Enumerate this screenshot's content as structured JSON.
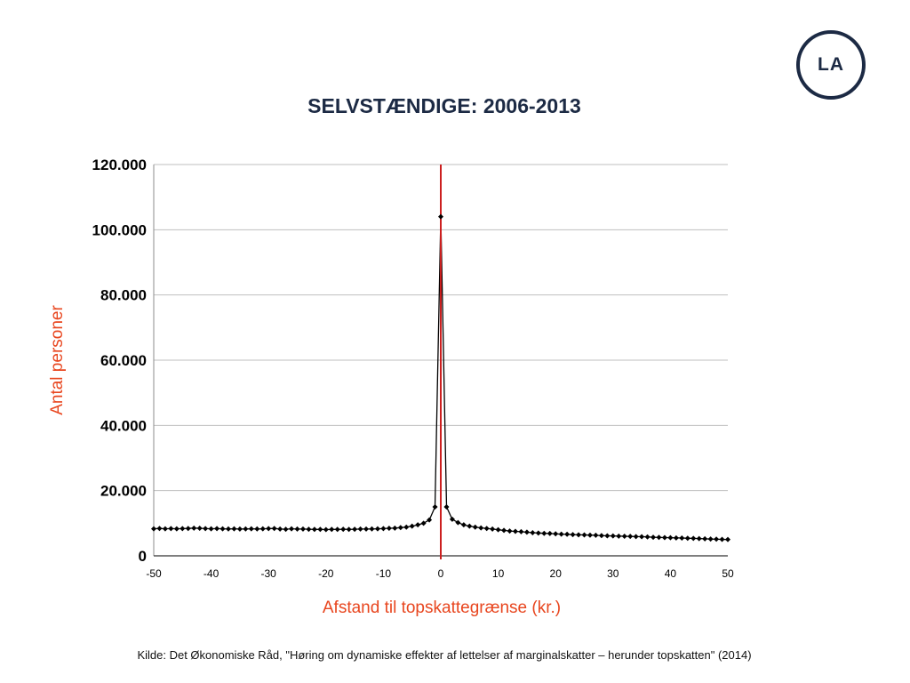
{
  "logo": {
    "text": "LA"
  },
  "source": "Kilde: Det Økonomiske Råd, \"Høring om dynamiske effekter af lettelser af marginalskatter – herunder topskatten\" (2014)",
  "chart_data": {
    "type": "line",
    "title": "SELVSTÆNDIGE: 2006-2013",
    "xlabel": "Afstand til topskattegrænse (kr.)",
    "ylabel": "Antal personer",
    "xlim": [
      -50,
      50
    ],
    "ylim": [
      0,
      120000
    ],
    "x_ticks": [
      -50,
      -40,
      -30,
      -20,
      -10,
      0,
      10,
      20,
      30,
      40,
      50
    ],
    "y_ticks": [
      {
        "value": 0,
        "label": "0"
      },
      {
        "value": 20000,
        "label": "20.000"
      },
      {
        "value": 40000,
        "label": "40.000"
      },
      {
        "value": 60000,
        "label": "60.000"
      },
      {
        "value": 80000,
        "label": "80.000"
      },
      {
        "value": 100000,
        "label": "100.000"
      },
      {
        "value": 120000,
        "label": "120.000"
      }
    ],
    "grid": "horizontal",
    "reference_line_x": 0,
    "colors": {
      "line": "#000000",
      "reference": "#cc1f1f",
      "axis_label": "#e8461f",
      "grid": "#bfbfbf"
    },
    "series": [
      {
        "x": [
          -50,
          -49,
          -48,
          -47,
          -46,
          -45,
          -44,
          -43,
          -42,
          -41,
          -40,
          -39,
          -38,
          -37,
          -36,
          -35,
          -34,
          -33,
          -32,
          -31,
          -30,
          -29,
          -28,
          -27,
          -26,
          -25,
          -24,
          -23,
          -22,
          -21,
          -20,
          -19,
          -18,
          -17,
          -16,
          -15,
          -14,
          -13,
          -12,
          -11,
          -10,
          -9,
          -8,
          -7,
          -6,
          -5,
          -4,
          -3,
          -2,
          -1,
          0,
          1,
          2,
          3,
          4,
          5,
          6,
          7,
          8,
          9,
          10,
          11,
          12,
          13,
          14,
          15,
          16,
          17,
          18,
          19,
          20,
          21,
          22,
          23,
          24,
          25,
          26,
          27,
          28,
          29,
          30,
          31,
          32,
          33,
          34,
          35,
          36,
          37,
          38,
          39,
          40,
          41,
          42,
          43,
          44,
          45,
          46,
          47,
          48,
          49,
          50
        ],
        "values": [
          8300,
          8400,
          8300,
          8350,
          8300,
          8350,
          8400,
          8500,
          8450,
          8350,
          8300,
          8350,
          8300,
          8250,
          8300,
          8200,
          8250,
          8300,
          8250,
          8300,
          8350,
          8400,
          8200,
          8150,
          8300,
          8200,
          8200,
          8150,
          8100,
          8100,
          8050,
          8100,
          8100,
          8150,
          8100,
          8150,
          8200,
          8200,
          8250,
          8300,
          8350,
          8450,
          8500,
          8650,
          8800,
          9100,
          9500,
          10000,
          11000,
          15000,
          104000,
          15000,
          11200,
          10200,
          9500,
          9100,
          8800,
          8550,
          8400,
          8200,
          8000,
          7800,
          7600,
          7500,
          7400,
          7250,
          7100,
          7000,
          6900,
          6850,
          6750,
          6650,
          6600,
          6500,
          6450,
          6400,
          6350,
          6300,
          6200,
          6150,
          6100,
          6050,
          6000,
          5950,
          5900,
          5850,
          5800,
          5700,
          5650,
          5600,
          5550,
          5500,
          5450,
          5400,
          5350,
          5300,
          5200,
          5150,
          5100,
          5050,
          5000
        ]
      }
    ]
  }
}
